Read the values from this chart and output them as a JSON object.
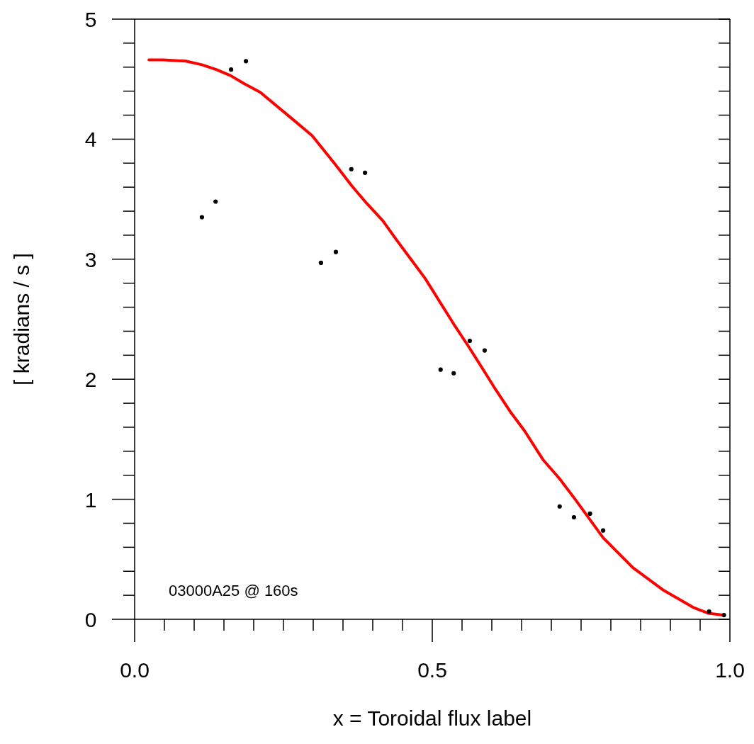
{
  "chart_data": {
    "type": "line",
    "xlabel": "x = Toroidal flux label",
    "ylabel": "[ kradians / s ]",
    "annotations": [
      "03000A25 @ 160s"
    ],
    "xlim": [
      0,
      1
    ],
    "ylim": [
      0,
      5
    ],
    "xticks": [
      {
        "value": 0,
        "label": "0.0"
      },
      {
        "value": 0.05,
        "label": null
      },
      {
        "value": 0.1,
        "label": null
      },
      {
        "value": 0.15,
        "label": null
      },
      {
        "value": 0.2,
        "label": null
      },
      {
        "value": 0.25,
        "label": null
      },
      {
        "value": 0.3,
        "label": null
      },
      {
        "value": 0.35,
        "label": null
      },
      {
        "value": 0.4,
        "label": null
      },
      {
        "value": 0.45,
        "label": null
      },
      {
        "value": 0.5,
        "label": "0.5"
      },
      {
        "value": 0.55,
        "label": null
      },
      {
        "value": 0.6,
        "label": null
      },
      {
        "value": 0.65,
        "label": null
      },
      {
        "value": 0.7,
        "label": null
      },
      {
        "value": 0.75,
        "label": null
      },
      {
        "value": 0.8,
        "label": null
      },
      {
        "value": 0.85,
        "label": null
      },
      {
        "value": 0.9,
        "label": null
      },
      {
        "value": 0.95,
        "label": null
      },
      {
        "value": 1,
        "label": "1.0"
      }
    ],
    "yticks": [
      0,
      {
        "value": 0.2,
        "label": null
      },
      {
        "value": 0.4,
        "label": null
      },
      {
        "value": 0.6,
        "label": null
      },
      {
        "value": 0.8,
        "label": null
      },
      1,
      {
        "value": 1.2,
        "label": null
      },
      {
        "value": 1.4,
        "label": null
      },
      {
        "value": 1.6,
        "label": null
      },
      {
        "value": 1.8,
        "label": null
      },
      2,
      {
        "value": 2.2,
        "label": null
      },
      {
        "value": 2.4,
        "label": null
      },
      {
        "value": 2.6,
        "label": null
      },
      {
        "value": 2.8,
        "label": null
      },
      3,
      {
        "value": 3.2,
        "label": null
      },
      {
        "value": 3.4,
        "label": null
      },
      {
        "value": 3.6,
        "label": null
      },
      {
        "value": 3.8,
        "label": null
      },
      4,
      {
        "value": 4.2,
        "label": null
      },
      {
        "value": 4.4,
        "label": null
      },
      {
        "value": 4.6,
        "label": null
      },
      {
        "value": 4.8,
        "label": null
      },
      5
    ],
    "grid": false,
    "legend": false,
    "series": [
      {
        "type": "line",
        "color": "#ff0000",
        "marker": "none",
        "line_style": "solid",
        "x": [
          0.024,
          0.048,
          0.086,
          0.113,
          0.137,
          0.161,
          0.185,
          0.211,
          0.262,
          0.298,
          0.337,
          0.365,
          0.389,
          0.417,
          0.44,
          0.464,
          0.488,
          0.512,
          0.536,
          0.56,
          0.583,
          0.607,
          0.631,
          0.655,
          0.686,
          0.714,
          0.74,
          0.787,
          0.837,
          0.889,
          0.938,
          0.964,
          0.988
        ],
        "values": [
          4.66,
          4.66,
          4.65,
          4.62,
          4.58,
          4.53,
          4.46,
          4.39,
          4.18,
          4.03,
          3.79,
          3.61,
          3.47,
          3.32,
          3.16,
          3.0,
          2.84,
          2.65,
          2.46,
          2.28,
          2.1,
          1.91,
          1.73,
          1.57,
          1.33,
          1.17,
          1.0,
          0.68,
          0.43,
          0.24,
          0.1,
          0.05,
          0.035
        ]
      },
      {
        "type": "scatter",
        "color": "#000000",
        "marker": "circle",
        "x": [
          0.113,
          0.136,
          0.162,
          0.187,
          0.313,
          0.338,
          0.364,
          0.387,
          0.514,
          0.536,
          0.563,
          0.588,
          0.714,
          0.738,
          0.765,
          0.787,
          0.965,
          0.99
        ],
        "values": [
          3.35,
          3.48,
          4.58,
          4.65,
          2.97,
          3.06,
          3.75,
          3.72,
          2.08,
          2.05,
          2.32,
          2.24,
          0.94,
          0.85,
          0.88,
          0.74,
          0.065,
          0.035
        ]
      }
    ]
  }
}
